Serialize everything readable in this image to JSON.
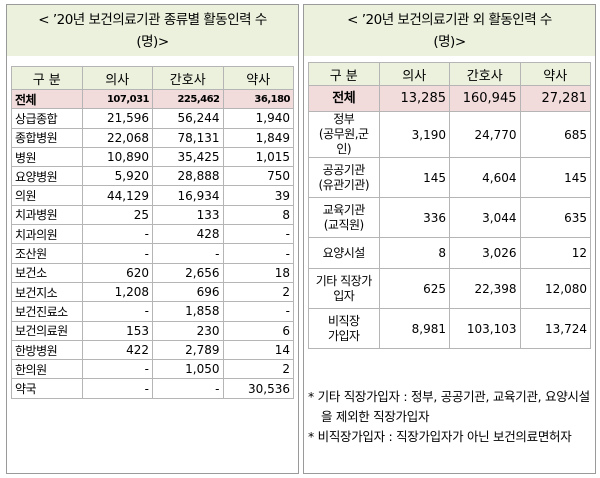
{
  "left": {
    "title_line1": "< ’20년 보건의료기관 종류별 활동인력 수",
    "title_line2": "(명)>",
    "headers": [
      "구 분",
      "의사",
      "간호사",
      "약사"
    ],
    "rows": [
      {
        "label": "전체",
        "v": [
          "107,031",
          "225,462",
          "36,180"
        ]
      },
      {
        "label": "상급종합",
        "v": [
          "21,596",
          "56,244",
          "1,940"
        ]
      },
      {
        "label": "종합병원",
        "v": [
          "22,068",
          "78,131",
          "1,849"
        ]
      },
      {
        "label": "병원",
        "v": [
          "10,890",
          "35,425",
          "1,015"
        ]
      },
      {
        "label": "요양병원",
        "v": [
          "5,920",
          "28,888",
          "750"
        ]
      },
      {
        "label": "의원",
        "v": [
          "44,129",
          "16,934",
          "39"
        ]
      },
      {
        "label": "치과병원",
        "v": [
          "25",
          "133",
          "8"
        ]
      },
      {
        "label": "치과의원",
        "v": [
          "-",
          "428",
          "-"
        ]
      },
      {
        "label": "조산원",
        "v": [
          "-",
          "-",
          "-"
        ]
      },
      {
        "label": "보건소",
        "v": [
          "620",
          "2,656",
          "18"
        ]
      },
      {
        "label": "보건지소",
        "v": [
          "1,208",
          "696",
          "2"
        ]
      },
      {
        "label": "보건진료소",
        "v": [
          "-",
          "1,858",
          "-"
        ]
      },
      {
        "label": "보건의료원",
        "v": [
          "153",
          "230",
          "6"
        ]
      },
      {
        "label": "한방병원",
        "v": [
          "422",
          "2,789",
          "14"
        ]
      },
      {
        "label": "한의원",
        "v": [
          "-",
          "1,050",
          "2"
        ]
      },
      {
        "label": "약국",
        "v": [
          "-",
          "-",
          "30,536"
        ]
      }
    ]
  },
  "right": {
    "title_line1": "< ’20년 보건의료기관 외 활동인력 수",
    "title_line2": "(명)>",
    "headers": [
      "구 분",
      "의사",
      "간호사",
      "약사"
    ],
    "rows": [
      {
        "label1": "전체",
        "label2": "",
        "v": [
          "13,285",
          "160,945",
          "27,281"
        ]
      },
      {
        "label1": "정부",
        "label2": "(공무원,군인)",
        "v": [
          "3,190",
          "24,770",
          "685"
        ]
      },
      {
        "label1": "공공기관",
        "label2": "(유관기관)",
        "v": [
          "145",
          "4,604",
          "145"
        ]
      },
      {
        "label1": "교육기관",
        "label2": "(교직원)",
        "v": [
          "336",
          "3,044",
          "635"
        ]
      },
      {
        "label1": "요양시설",
        "label2": "",
        "v": [
          "8",
          "3,026",
          "12"
        ]
      },
      {
        "label1": "기타 직장가",
        "label2": "입자",
        "v": [
          "625",
          "22,398",
          "12,080"
        ]
      },
      {
        "label1": "비직장",
        "label2": "가입자",
        "v": [
          "8,981",
          "103,103",
          "13,724"
        ]
      }
    ],
    "notes": [
      "* 기타 직장가입자 : 정부, 공공기관, 교육기관, 요양시설을 제외한 직장가입자",
      "* 비직장가입자 : 직장가입자가 아닌 보건의료면허자"
    ]
  },
  "colors": {
    "title_bg": "#ebf1dd",
    "total_bg": "#f2dcdb",
    "border": "#b5b5b5"
  }
}
